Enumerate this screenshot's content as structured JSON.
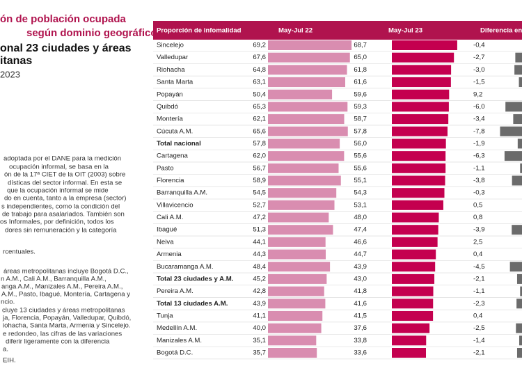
{
  "title": {
    "lines": [
      "ón de población ocupada",
      "según dominio geográfico",
      "onal 23 ciudades y áreas",
      "itanas"
    ],
    "period": "2023"
  },
  "notes": [
    "adoptada por el DANE para la medición",
    "ocupación informal, se basa en la",
    "ón de la 17ª CIET de la OIT (2003) sobre",
    "dísticas del sector informal. En esta se",
    "que la ocupación informal se mide",
    "do en cuenta, tanto a la empresa (sector)",
    "s independientes, como la condición del",
    "de trabajo para asalariados. También son",
    "os Informales, por definición, todos los",
    "dores sin remuneración y la categoría",
    "rcentuales.",
    "áreas metropolitanas incluye Bogotá D.C.,",
    "n A.M., Cali A.M., Barranquilla A.M.,",
    "anga A.M., Manizales A.M., Pereira A.M.,",
    "A.M., Pasto, Ibagué, Montería, Cartagena y",
    "ncio.",
    "cluye 13 ciudades y áreas metropolitanas",
    "ja, Florencia, Popayán, Valledupar, Quibdó,",
    "iohacha, Santa Marta, Armenia y Sincelejo.",
    "e redondeo, las cifras de las variaciones",
    "diferir ligeramente con la diferencia",
    "a.",
    "EIH."
  ],
  "table": {
    "headers": [
      "Proporción de infomalidad",
      "May-Jul 22",
      "May-Jul 23",
      "Diferencia en"
    ],
    "colors": {
      "header": "#b0134e",
      "may22": "#d98db0",
      "may23": "#c4004f",
      "diff": "#6b6b6b"
    },
    "rows": [
      {
        "name": "Sincelejo",
        "may22": {
          "value": 69.2,
          "label": "69,2"
        },
        "may23": {
          "value": 68.7,
          "label": "68,7"
        },
        "diff": {
          "value": -0.4,
          "label": "-0,4"
        }
      },
      {
        "name": "Valledupar",
        "may22": {
          "value": 67.6,
          "label": "67,6"
        },
        "may23": {
          "value": 65.0,
          "label": "65,0"
        },
        "diff": {
          "value": -2.7,
          "label": "-2,7"
        }
      },
      {
        "name": "Riohacha",
        "may22": {
          "value": 64.8,
          "label": "64,8"
        },
        "may23": {
          "value": 61.8,
          "label": "61,8"
        },
        "diff": {
          "value": -3.0,
          "label": "-3,0"
        }
      },
      {
        "name": "Santa Marta",
        "may22": {
          "value": 63.1,
          "label": "63,1"
        },
        "may23": {
          "value": 61.6,
          "label": "61,6"
        },
        "diff": {
          "value": -1.5,
          "label": "-1,5"
        }
      },
      {
        "name": "Popayán",
        "may22": {
          "value": 50.4,
          "label": "50,4"
        },
        "may23": {
          "value": 59.6,
          "label": "59,6"
        },
        "diff": {
          "value": 9.2,
          "label": "9,2"
        }
      },
      {
        "name": "Quibdó",
        "may22": {
          "value": 65.3,
          "label": "65,3"
        },
        "may23": {
          "value": 59.3,
          "label": "59,3"
        },
        "diff": {
          "value": -6.0,
          "label": "-6,0"
        }
      },
      {
        "name": "Montería",
        "may22": {
          "value": 62.1,
          "label": "62,1"
        },
        "may23": {
          "value": 58.7,
          "label": "58,7"
        },
        "diff": {
          "value": -3.4,
          "label": "-3,4"
        }
      },
      {
        "name": "Cúcuta A.M.",
        "may22": {
          "value": 65.6,
          "label": "65,6"
        },
        "may23": {
          "value": 57.8,
          "label": "57,8"
        },
        "diff": {
          "value": -7.8,
          "label": "-7,8"
        }
      },
      {
        "name": "Total nacional",
        "bold": true,
        "may22": {
          "value": 57.8,
          "label": "57,8"
        },
        "may23": {
          "value": 56.0,
          "label": "56,0"
        },
        "diff": {
          "value": -1.9,
          "label": "-1,9"
        }
      },
      {
        "name": "Cartagena",
        "may22": {
          "value": 62.0,
          "label": "62,0"
        },
        "may23": {
          "value": 55.6,
          "label": "55,6"
        },
        "diff": {
          "value": -6.3,
          "label": "-6,3"
        }
      },
      {
        "name": "Pasto",
        "may22": {
          "value": 56.7,
          "label": "56,7"
        },
        "may23": {
          "value": 55.6,
          "label": "55,6"
        },
        "diff": {
          "value": -1.1,
          "label": "-1,1"
        }
      },
      {
        "name": "Florencia",
        "may22": {
          "value": 58.9,
          "label": "58,9"
        },
        "may23": {
          "value": 55.1,
          "label": "55,1"
        },
        "diff": {
          "value": -3.8,
          "label": "-3,8"
        }
      },
      {
        "name": "Barranquilla A.M.",
        "may22": {
          "value": 54.5,
          "label": "54,5"
        },
        "may23": {
          "value": 54.3,
          "label": "54,3"
        },
        "diff": {
          "value": -0.3,
          "label": "-0,3"
        }
      },
      {
        "name": "Villavicencio",
        "may22": {
          "value": 52.7,
          "label": "52,7"
        },
        "may23": {
          "value": 53.1,
          "label": "53,1"
        },
        "diff": {
          "value": 0.5,
          "label": "0,5"
        }
      },
      {
        "name": "Cali A.M.",
        "may22": {
          "value": 47.2,
          "label": "47,2"
        },
        "may23": {
          "value": 48.0,
          "label": "48,0"
        },
        "diff": {
          "value": 0.8,
          "label": "0,8"
        }
      },
      {
        "name": "Ibagué",
        "may22": {
          "value": 51.3,
          "label": "51,3"
        },
        "may23": {
          "value": 47.4,
          "label": "47,4"
        },
        "diff": {
          "value": -3.9,
          "label": "-3,9"
        }
      },
      {
        "name": "Neiva",
        "may22": {
          "value": 44.1,
          "label": "44,1"
        },
        "may23": {
          "value": 46.6,
          "label": "46,6"
        },
        "diff": {
          "value": 2.5,
          "label": "2,5"
        }
      },
      {
        "name": "Armenia",
        "may22": {
          "value": 44.3,
          "label": "44,3"
        },
        "may23": {
          "value": 44.7,
          "label": "44,7"
        },
        "diff": {
          "value": 0.4,
          "label": "0,4"
        }
      },
      {
        "name": "Bucaramanga A.M.",
        "may22": {
          "value": 48.4,
          "label": "48,4"
        },
        "may23": {
          "value": 43.9,
          "label": "43,9"
        },
        "diff": {
          "value": -4.5,
          "label": "-4,5"
        }
      },
      {
        "name": "Total 23 ciudades y A.M.",
        "bold": true,
        "may22": {
          "value": 45.2,
          "label": "45,2"
        },
        "may23": {
          "value": 43.0,
          "label": "43,0"
        },
        "diff": {
          "value": -2.1,
          "label": "-2,1"
        }
      },
      {
        "name": "Pereira A.M.",
        "may22": {
          "value": 42.8,
          "label": "42,8"
        },
        "may23": {
          "value": 41.8,
          "label": "41,8"
        },
        "diff": {
          "value": -1.1,
          "label": "-1,1"
        }
      },
      {
        "name": "Total 13 ciudades A.M.",
        "bold": true,
        "may22": {
          "value": 43.9,
          "label": "43,9"
        },
        "may23": {
          "value": 41.6,
          "label": "41,6"
        },
        "diff": {
          "value": -2.3,
          "label": "-2,3"
        }
      },
      {
        "name": "Tunja",
        "may22": {
          "value": 41.1,
          "label": "41,1"
        },
        "may23": {
          "value": 41.5,
          "label": "41,5"
        },
        "diff": {
          "value": 0.4,
          "label": "0,4"
        }
      },
      {
        "name": "Medellín A.M.",
        "may22": {
          "value": 40.0,
          "label": "40,0"
        },
        "may23": {
          "value": 37.6,
          "label": "37,6"
        },
        "diff": {
          "value": -2.5,
          "label": "-2,5"
        }
      },
      {
        "name": "Manizales A.M.",
        "may22": {
          "value": 35.1,
          "label": "35,1"
        },
        "may23": {
          "value": 33.8,
          "label": "33,8"
        },
        "diff": {
          "value": -1.4,
          "label": "-1,4"
        }
      },
      {
        "name": "Bogotá D.C.",
        "may22": {
          "value": 35.7,
          "label": "35,7"
        },
        "may23": {
          "value": 33.6,
          "label": "33,6"
        },
        "diff": {
          "value": -2.1,
          "label": "-2,1"
        }
      }
    ]
  }
}
